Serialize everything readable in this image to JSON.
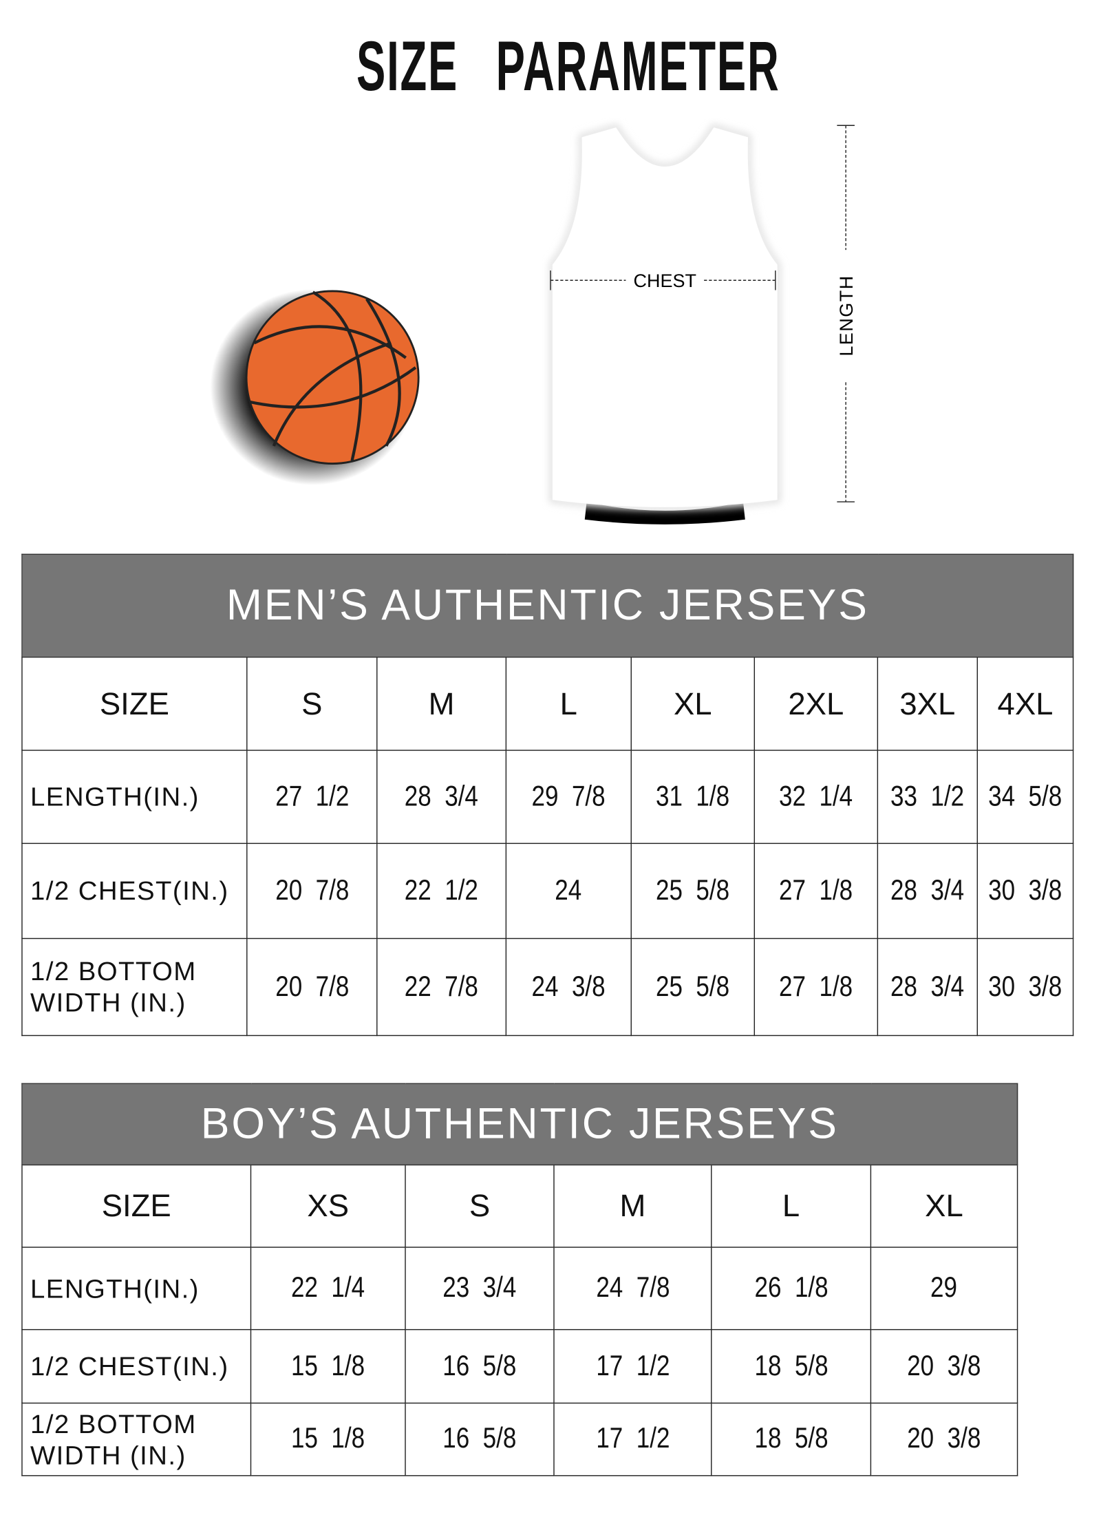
{
  "title": "SIZE PARAMETER",
  "diagram": {
    "chest_label": "CHEST",
    "length_label": "LENGTH",
    "ball_color": "#e8692e",
    "header_bg": "#767676"
  },
  "mens_table": {
    "title": "MEN’S AUTHENTIC JERSEYS",
    "size_label": "SIZE",
    "sizes": [
      "S",
      "M",
      "L",
      "XL",
      "2XL",
      "3XL",
      "4XL"
    ],
    "rows": [
      {
        "label": "LENGTH(IN.)",
        "values": [
          "27  1/2",
          "28  3/4",
          "29  7/8",
          "31  1/8",
          "32  1/4",
          "33  1/2",
          "34  5/8"
        ]
      },
      {
        "label": "1/2 CHEST(IN.)",
        "values": [
          "20  7/8",
          "22  1/2",
          "24",
          "25  5/8",
          "27  1/8",
          "28  3/4",
          "30  3/8"
        ]
      },
      {
        "label": "1/2 BOTTOM WIDTH  (IN.)",
        "values": [
          "20  7/8",
          "22  7/8",
          "24  3/8",
          "25  5/8",
          "27  1/8",
          "28  3/4",
          "30  3/8"
        ]
      }
    ]
  },
  "boys_table": {
    "title": "BOY’S AUTHENTIC JERSEYS",
    "size_label": "SIZE",
    "sizes": [
      "XS",
      "S",
      "M",
      "L",
      "XL"
    ],
    "rows": [
      {
        "label": "LENGTH(IN.)",
        "values": [
          "22  1/4",
          "23  3/4",
          "24  7/8",
          "26  1/8",
          "29"
        ]
      },
      {
        "label": "1/2 CHEST(IN.)",
        "values": [
          "15  1/8",
          "16  5/8",
          "17  1/2",
          "18  5/8",
          "20  3/8"
        ]
      },
      {
        "label": "1/2 BOTTOM WIDTH  (IN.)",
        "values": [
          "15  1/8",
          "16  5/8",
          "17  1/2",
          "18  5/8",
          "20  3/8"
        ]
      }
    ]
  }
}
